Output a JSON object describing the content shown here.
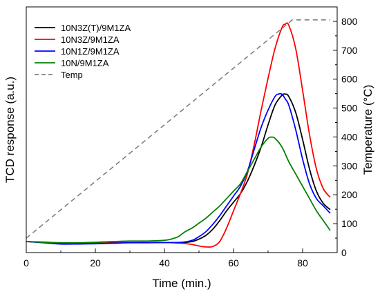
{
  "chart_data": {
    "type": "line",
    "title": "",
    "xlabel": "Time (min.)",
    "ylabel": "TCD response (a.u.)",
    "y2label": "Temperature (°C)",
    "xlim": [
      0,
      90
    ],
    "ylim": [
      0,
      1
    ],
    "y2lim": [
      0,
      850
    ],
    "xticks": [
      0,
      20,
      40,
      60,
      80
    ],
    "xtick_labels": [
      "0",
      "20",
      "40",
      "60",
      "80"
    ],
    "y2ticks": [
      0,
      100,
      200,
      300,
      400,
      500,
      600,
      700,
      800
    ],
    "y2tick_labels": [
      "0",
      "100",
      "200",
      "300",
      "400",
      "500",
      "600",
      "700",
      "800"
    ],
    "grid": false,
    "legend_position": "top-left",
    "series": [
      {
        "name": "10N3Z(T)/9M1ZA",
        "color": "#000000",
        "axis": "left",
        "x": [
          0,
          5,
          10,
          15,
          20,
          25,
          30,
          35,
          40,
          45,
          48,
          50,
          52,
          54,
          56,
          58,
          60,
          62,
          64,
          66,
          68,
          70,
          72,
          74,
          75,
          76,
          78,
          80,
          82,
          84,
          86,
          88
        ],
        "y": [
          0.045,
          0.042,
          0.038,
          0.037,
          0.038,
          0.04,
          0.041,
          0.041,
          0.041,
          0.041,
          0.045,
          0.055,
          0.07,
          0.095,
          0.13,
          0.17,
          0.205,
          0.24,
          0.29,
          0.355,
          0.43,
          0.52,
          0.6,
          0.64,
          0.645,
          0.635,
          0.57,
          0.46,
          0.34,
          0.25,
          0.2,
          0.175
        ]
      },
      {
        "name": "10N3Z/9M1ZA",
        "color": "#ff0000",
        "axis": "left",
        "x": [
          0,
          5,
          10,
          15,
          20,
          25,
          30,
          35,
          40,
          45,
          48,
          50,
          52,
          54,
          56,
          58,
          60,
          62,
          64,
          66,
          68,
          70,
          72,
          74,
          75,
          76,
          78,
          80,
          82,
          84,
          86,
          88
        ],
        "y": [
          0.045,
          0.043,
          0.039,
          0.037,
          0.037,
          0.039,
          0.041,
          0.041,
          0.041,
          0.038,
          0.033,
          0.027,
          0.023,
          0.025,
          0.045,
          0.1,
          0.17,
          0.24,
          0.32,
          0.44,
          0.58,
          0.71,
          0.83,
          0.915,
          0.93,
          0.925,
          0.83,
          0.66,
          0.48,
          0.34,
          0.26,
          0.225
        ]
      },
      {
        "name": "10N1Z/9M1ZA",
        "color": "#0000ff",
        "axis": "left",
        "x": [
          0,
          5,
          10,
          15,
          20,
          25,
          30,
          35,
          40,
          45,
          48,
          50,
          52,
          54,
          56,
          58,
          60,
          62,
          64,
          66,
          68,
          70,
          72,
          73,
          74,
          75,
          76,
          78,
          80,
          82,
          84,
          86,
          88
        ],
        "y": [
          0.045,
          0.04,
          0.035,
          0.035,
          0.036,
          0.038,
          0.04,
          0.04,
          0.041,
          0.042,
          0.05,
          0.065,
          0.085,
          0.115,
          0.15,
          0.19,
          0.23,
          0.27,
          0.33,
          0.42,
          0.51,
          0.58,
          0.635,
          0.645,
          0.645,
          0.625,
          0.6,
          0.5,
          0.38,
          0.28,
          0.22,
          0.19,
          0.16
        ]
      },
      {
        "name": "10N/9M1ZA",
        "color": "#008000",
        "axis": "left",
        "x": [
          0,
          5,
          10,
          15,
          20,
          25,
          30,
          35,
          40,
          42,
          44,
          46,
          48,
          50,
          52,
          54,
          56,
          58,
          60,
          62,
          64,
          66,
          68,
          70,
          71,
          72,
          74,
          76,
          78,
          80,
          82,
          84,
          86,
          88
        ],
        "y": [
          0.045,
          0.042,
          0.04,
          0.04,
          0.042,
          0.045,
          0.047,
          0.047,
          0.05,
          0.055,
          0.065,
          0.085,
          0.1,
          0.12,
          0.14,
          0.165,
          0.19,
          0.22,
          0.25,
          0.28,
          0.33,
          0.38,
          0.43,
          0.465,
          0.47,
          0.465,
          0.43,
          0.37,
          0.32,
          0.27,
          0.22,
          0.17,
          0.13,
          0.09
        ]
      },
      {
        "name": "Temp",
        "color": "#808080",
        "dash": true,
        "axis": "right",
        "x": [
          0,
          76,
          77,
          88
        ],
        "y": [
          50,
          795,
          805,
          805
        ]
      }
    ]
  }
}
